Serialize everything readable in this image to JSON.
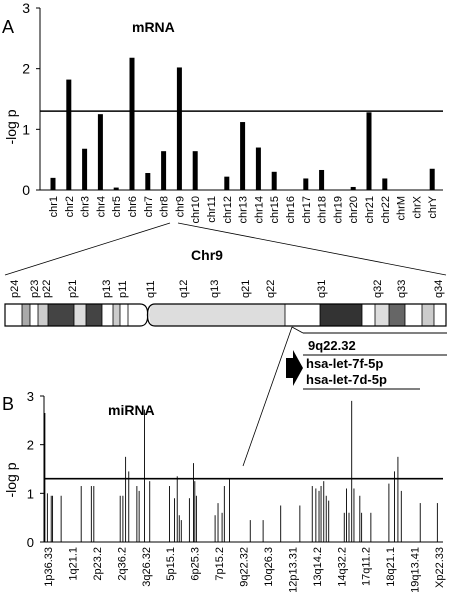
{
  "panel_a": {
    "letter": "A",
    "chart_title": "mRNA",
    "ylabel": "-log p"
  },
  "panel_b": {
    "letter": "B",
    "chart_title": "miRNA",
    "ylabel": "-log p"
  },
  "chromosome": {
    "title": "Chr9",
    "bands": [
      "p24",
      "p23",
      "p22",
      "p21",
      "p13",
      "p11",
      "q11",
      "q12",
      "q13",
      "q21",
      "q22",
      "q31",
      "q32",
      "q33",
      "q34"
    ],
    "callout": {
      "region": "9q22.32",
      "mirnas": [
        "hsa-let-7f-5p",
        "hsa-let-7d-5p"
      ]
    }
  },
  "chart_data": [
    {
      "type": "bar",
      "title": "mRNA",
      "ylabel": "-log p",
      "ylim": [
        0,
        3
      ],
      "yticks": [
        0,
        1,
        2,
        3
      ],
      "threshold": 1.3,
      "categories": [
        "chr1",
        "chr2",
        "chr3",
        "chr4",
        "chr5",
        "chr6",
        "chr7",
        "chr8",
        "chr9",
        "chr10",
        "chr11",
        "chr12",
        "chr13",
        "chr14",
        "chr15",
        "chr16",
        "chr17",
        "chr18",
        "chr19",
        "chr20",
        "chr21",
        "chr22",
        "chrM",
        "chrX",
        "chrY"
      ],
      "values": [
        0.2,
        1.82,
        0.68,
        1.25,
        0.04,
        2.18,
        0.28,
        0.64,
        2.02,
        0.64,
        0.0,
        0.22,
        1.12,
        0.7,
        0.3,
        0.0,
        0.19,
        0.33,
        0.0,
        0.05,
        1.28,
        0.19,
        0.0,
        0.0,
        0.35
      ]
    },
    {
      "type": "bar",
      "title": "miRNA",
      "ylabel": "-log p",
      "ylim": [
        0,
        3
      ],
      "yticks": [
        0,
        1,
        2,
        3
      ],
      "threshold": 1.3,
      "xticklabels": [
        "1p36.33",
        "1q21.1",
        "2p23.2",
        "2q36.2",
        "3q26.32",
        "5p15.1",
        "6p25.3",
        "7p15.2",
        "9q22.32",
        "10q26.3",
        "12p13.31",
        "13q14.2",
        "14q32.2",
        "17q11.2",
        "18q21.1",
        "19q13.41",
        "Xp22.33"
      ],
      "x": [
        0.4,
        1.5,
        3.2,
        3.8,
        7.6,
        16.5,
        21.0,
        22.1,
        33.8,
        35.0,
        36.2,
        37.6,
        41.2,
        42.2,
        44.6,
        46.9,
        55.7,
        57.9,
        59.1,
        60.0,
        60.9,
        64.5,
        66.3,
        66.9,
        67.6,
        75.9,
        77.2,
        79.0,
        80.0,
        82.3,
        91.5,
        97.2,
        105.0,
        113.5,
        119.0,
        120.6,
        122.0,
        122.9,
        124.1,
        125.2,
        126.3,
        133.2,
        134.2,
        135.3,
        136.5,
        137.5,
        140.1,
        140.9,
        145.0,
        153.0,
        155.5,
        157.0,
        158.5,
        166.9,
        174.5
      ],
      "values": [
        2.65,
        1.0,
        0.95,
        0.95,
        0.95,
        1.15,
        1.15,
        1.15,
        0.95,
        0.95,
        1.75,
        1.45,
        1.15,
        1.05,
        2.72,
        1.25,
        1.15,
        0.9,
        1.35,
        0.55,
        0.45,
        0.9,
        1.62,
        1.25,
        0.95,
        0.55,
        0.8,
        0.6,
        1.15,
        1.3,
        0.45,
        0.45,
        0.75,
        0.75,
        1.15,
        1.1,
        1.05,
        1.15,
        1.25,
        0.95,
        0.85,
        0.6,
        1.1,
        0.6,
        2.9,
        1.1,
        0.95,
        0.6,
        0.6,
        1.2,
        1.45,
        1.75,
        1.05,
        0.8,
        0.8
      ]
    }
  ]
}
